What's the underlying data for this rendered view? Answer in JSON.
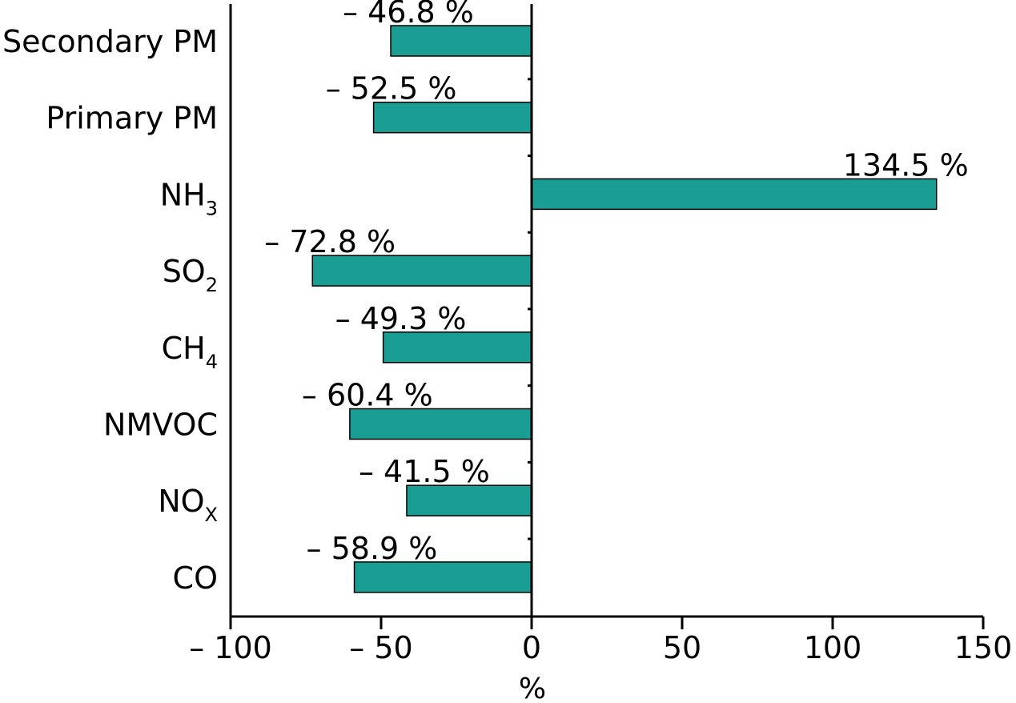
{
  "chart_data": {
    "type": "bar",
    "orientation": "horizontal",
    "categories": [
      {
        "base": "Secondary PM",
        "sub": ""
      },
      {
        "base": "Primary PM",
        "sub": ""
      },
      {
        "base": "NH",
        "sub": "3"
      },
      {
        "base": "SO",
        "sub": "2"
      },
      {
        "base": "CH",
        "sub": "4"
      },
      {
        "base": "NMVOC",
        "sub": ""
      },
      {
        "base": "NO",
        "sub": "X"
      },
      {
        "base": "CO",
        "sub": ""
      }
    ],
    "values": [
      -46.8,
      -52.5,
      134.5,
      -72.8,
      -49.3,
      -60.4,
      -41.5,
      -58.9
    ],
    "value_labels": [
      "– 46.8 %",
      "– 52.5 %",
      "134.5 %",
      "– 72.8 %",
      "– 49.3 %",
      "– 60.4 %",
      "– 41.5 %",
      "– 58.9 %"
    ],
    "xlabel": "%",
    "xlim": [
      -100,
      150
    ],
    "xticks": [
      -100,
      -50,
      0,
      50,
      100,
      150
    ],
    "xtick_labels": [
      "– 100",
      "– 50",
      "0",
      "50",
      "100",
      "150"
    ],
    "bar_color": "#1a9e94",
    "grid": false,
    "legend": "none"
  }
}
